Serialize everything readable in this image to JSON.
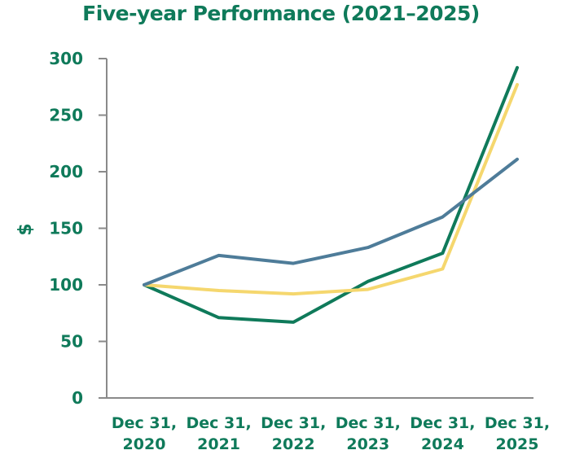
{
  "chart_data": {
    "type": "line",
    "title": "Five-year Performance (2021–2025)",
    "ylabel": "$",
    "xlabel": "",
    "ylim": [
      0,
      300
    ],
    "yticks": [
      0,
      50,
      100,
      150,
      200,
      250,
      300
    ],
    "categories": [
      [
        "Dec 31,",
        "2020"
      ],
      [
        "Dec 31,",
        "2021"
      ],
      [
        "Dec 31,",
        "2022"
      ],
      [
        "Dec 31,",
        "2023"
      ],
      [
        "Dec 31,",
        "2024"
      ],
      [
        "Dec 31,",
        "2025"
      ]
    ],
    "series": [
      {
        "color": "#0f7a5a",
        "values": [
          100,
          71,
          67,
          103,
          128,
          292
        ]
      },
      {
        "color": "#f5d76e",
        "values": [
          100,
          95,
          92,
          96,
          114,
          277
        ]
      },
      {
        "color": "#4e7c99",
        "values": [
          100,
          126,
          119,
          133,
          160,
          211
        ]
      }
    ],
    "grid": false,
    "legend": "none",
    "colors": {
      "text": "#0f7a5a",
      "axis": "#8a8a8a"
    }
  }
}
